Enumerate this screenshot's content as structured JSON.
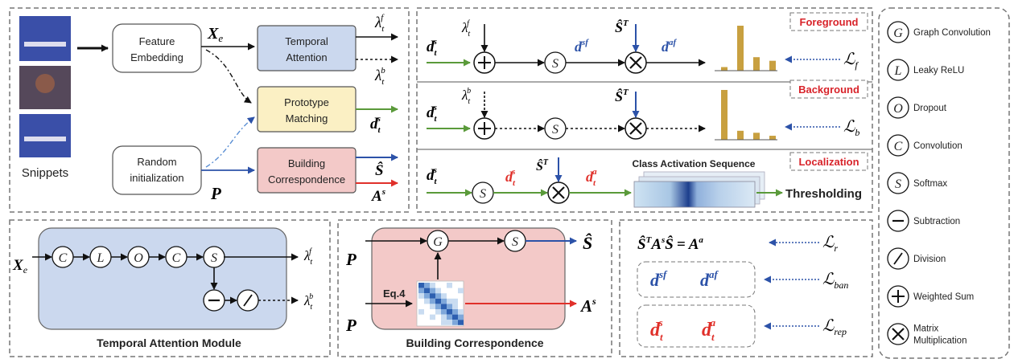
{
  "snippets_label": "Snippets",
  "boxes": {
    "feature_embedding": [
      "Feature",
      "Embedding"
    ],
    "random_init": [
      "Random",
      "initialization"
    ],
    "temporal_attention": [
      "Temporal",
      "Attention"
    ],
    "prototype_matching": [
      "Prototype",
      "Matching"
    ],
    "building_correspondence": [
      "Building",
      "Correspondence"
    ]
  },
  "math": {
    "X": "X",
    "e_sub": "e",
    "P": "P",
    "lambda": "λ",
    "f_sup": "f",
    "b_sup": "b",
    "d": "d",
    "s_sup": "s",
    "t_sub": "t",
    "S_hat": "Ŝ",
    "A": "A",
    "T_sup": "T",
    "sf_sup": "sf",
    "af_sup": "af",
    "a_sup": "a",
    "L": "ℒ",
    "f_loss": "f",
    "b_loss": "b",
    "r_loss": "r",
    "ban_loss": "ban",
    "rep_loss": "rep",
    "eq_rhs": "= A",
    "eq4": "Eq.4"
  },
  "branch_tags": [
    "Foreground",
    "Background",
    "Localization"
  ],
  "cas_label": "Class Activation Sequence",
  "thresholding": "Thresholding",
  "node_letters": {
    "G": "G",
    "S": "S",
    "C": "C",
    "L": "L",
    "O": "O"
  },
  "module_titles": {
    "tam": "Temporal Attention Module",
    "bc": "Building Correspondence"
  },
  "legend": [
    {
      "symbol": "G",
      "label": "Graph Convolution"
    },
    {
      "symbol": "L",
      "label": "Leaky ReLU"
    },
    {
      "symbol": "O",
      "label": "Dropout"
    },
    {
      "symbol": "C",
      "label": "Convolution"
    },
    {
      "symbol": "S",
      "label": "Softmax"
    },
    {
      "symbol": "minus",
      "label": "Subtraction"
    },
    {
      "symbol": "slash",
      "label": "Division"
    },
    {
      "symbol": "plus",
      "label": "Weighted Sum"
    },
    {
      "symbol": "times",
      "label": "Matrix Multiplication"
    }
  ],
  "colors": {
    "blue_box": "#cbd8ee",
    "yellow_box": "#fbf0c4",
    "red_box": "#f3c9c8",
    "green_arrow": "#5a9a3a",
    "blue_arrow": "#2c52a8",
    "red_arrow": "#e0302a",
    "bar": "#c8a040",
    "tag_red": "#d8232a"
  },
  "bars_foreground": [
    0.08,
    1.0,
    0.3,
    0.22
  ],
  "bars_background": [
    1.0,
    0.18,
    0.14,
    0.08
  ]
}
